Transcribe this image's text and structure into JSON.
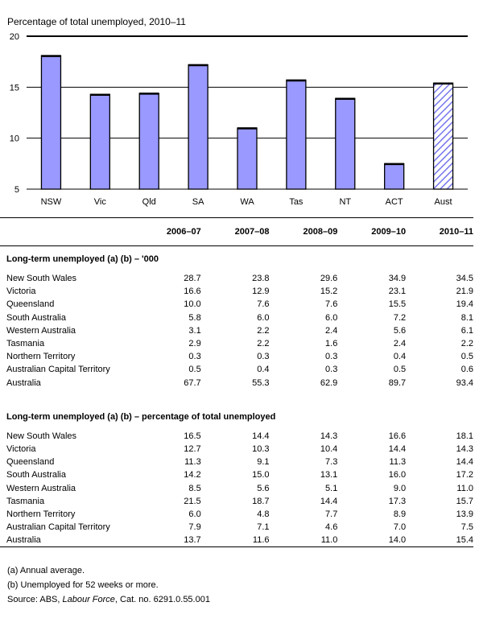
{
  "chart_data": {
    "type": "bar",
    "title": "Percentage of total unemployed, 2010–11",
    "categories": [
      "NSW",
      "Vic",
      "Qld",
      "SA",
      "WA",
      "Tas",
      "NT",
      "ACT",
      "Aust"
    ],
    "values": [
      18.1,
      14.3,
      14.4,
      17.2,
      11.0,
      15.7,
      13.9,
      7.5,
      15.4
    ],
    "ylim": [
      5,
      20
    ],
    "yticks": [
      5,
      10,
      15,
      20
    ],
    "grid": true,
    "bar_color": "#9999ff",
    "highlight_category": "Aust",
    "highlight_pattern": "diagonal-hatch"
  },
  "table": {
    "years": [
      "2006–07",
      "2007–08",
      "2008–09",
      "2009–10",
      "2010–11"
    ],
    "sections": [
      {
        "heading": "Long-term unemployed (a) (b) – '000",
        "rows": [
          {
            "label": "New South Wales",
            "values": [
              "28.7",
              "23.8",
              "29.6",
              "34.9",
              "34.5"
            ]
          },
          {
            "label": "Victoria",
            "values": [
              "16.6",
              "12.9",
              "15.2",
              "23.1",
              "21.9"
            ]
          },
          {
            "label": "Queensland",
            "values": [
              "10.0",
              "7.6",
              "7.6",
              "15.5",
              "19.4"
            ]
          },
          {
            "label": "South Australia",
            "values": [
              "5.8",
              "6.0",
              "6.0",
              "7.2",
              "8.1"
            ]
          },
          {
            "label": "Western Australia",
            "values": [
              "3.1",
              "2.2",
              "2.4",
              "5.6",
              "6.1"
            ]
          },
          {
            "label": "Tasmania",
            "values": [
              "2.9",
              "2.2",
              "1.6",
              "2.4",
              "2.2"
            ]
          },
          {
            "label": "Northern Territory",
            "values": [
              "0.3",
              "0.3",
              "0.3",
              "0.4",
              "0.5"
            ]
          },
          {
            "label": "Australian Capital Territory",
            "values": [
              "0.5",
              "0.4",
              "0.3",
              "0.5",
              "0.6"
            ]
          },
          {
            "label": "Australia",
            "values": [
              "67.7",
              "55.3",
              "62.9",
              "89.7",
              "93.4"
            ]
          }
        ]
      },
      {
        "heading": "Long-term unemployed (a) (b) – percentage of total unemployed",
        "rows": [
          {
            "label": "New South Wales",
            "values": [
              "16.5",
              "14.4",
              "14.3",
              "16.6",
              "18.1"
            ]
          },
          {
            "label": "Victoria",
            "values": [
              "12.7",
              "10.3",
              "10.4",
              "14.4",
              "14.3"
            ]
          },
          {
            "label": "Queensland",
            "values": [
              "11.3",
              "9.1",
              "7.3",
              "11.3",
              "14.4"
            ]
          },
          {
            "label": "South Australia",
            "values": [
              "14.2",
              "15.0",
              "13.1",
              "16.0",
              "17.2"
            ]
          },
          {
            "label": "Western Australia",
            "values": [
              "8.5",
              "5.6",
              "5.1",
              "9.0",
              "11.0"
            ]
          },
          {
            "label": "Tasmania",
            "values": [
              "21.5",
              "18.7",
              "14.4",
              "17.3",
              "15.7"
            ]
          },
          {
            "label": "Northern Territory",
            "values": [
              "6.0",
              "4.8",
              "7.7",
              "8.9",
              "13.9"
            ]
          },
          {
            "label": "Australian Capital Territory",
            "values": [
              "7.9",
              "7.1",
              "4.6",
              "7.0",
              "7.5"
            ]
          },
          {
            "label": "Australia",
            "values": [
              "13.7",
              "11.6",
              "11.0",
              "14.0",
              "15.4"
            ]
          }
        ]
      }
    ]
  },
  "notes": {
    "note_a": "(a) Annual average.",
    "note_b": "(b) Unemployed for 52 weeks or more.",
    "source_prefix": "Source: ABS, ",
    "source_italic": "Labour Force",
    "source_suffix": ", Cat. no. 6291.0.55.001"
  }
}
